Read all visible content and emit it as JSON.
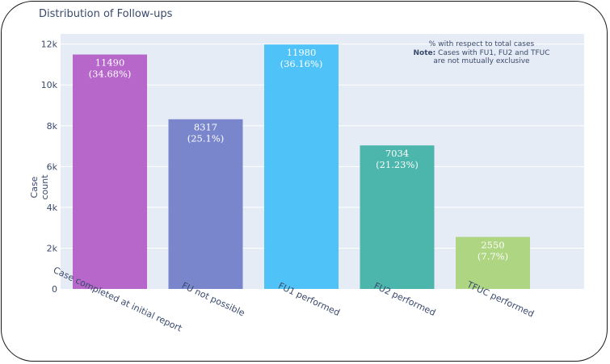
{
  "chart_data": {
    "type": "bar",
    "title": "Distribution of Follow-ups",
    "xlabel": "",
    "ylabel": "Case count",
    "ylim": [
      0,
      12500
    ],
    "y_ticks": [
      0,
      2000,
      4000,
      6000,
      8000,
      10000,
      12000
    ],
    "y_tick_labels": [
      "0",
      "2k",
      "4k",
      "6k",
      "8k",
      "10k",
      "12k"
    ],
    "grid": true,
    "categories": [
      "Case completed at initial report",
      "FU not possible",
      "FU1 performed",
      "FU2 performed",
      "TFUC performed"
    ],
    "values": [
      11490,
      8317,
      11980,
      7034,
      2550
    ],
    "percent_labels": [
      "(34.68%)",
      "(25.1%)",
      "(36.16%)",
      "(21.23%)",
      "(7.7%)"
    ],
    "colors": [
      "#b667c9",
      "#7a86cc",
      "#4fc3f7",
      "#4db6ac",
      "#aed581"
    ],
    "annotation": {
      "line1": "% with respect to total cases",
      "line2_bold": "Note:",
      "line2_rest": " Cases with FU1, FU2 and TFUC",
      "line3": "are not mutually exclusive"
    }
  }
}
